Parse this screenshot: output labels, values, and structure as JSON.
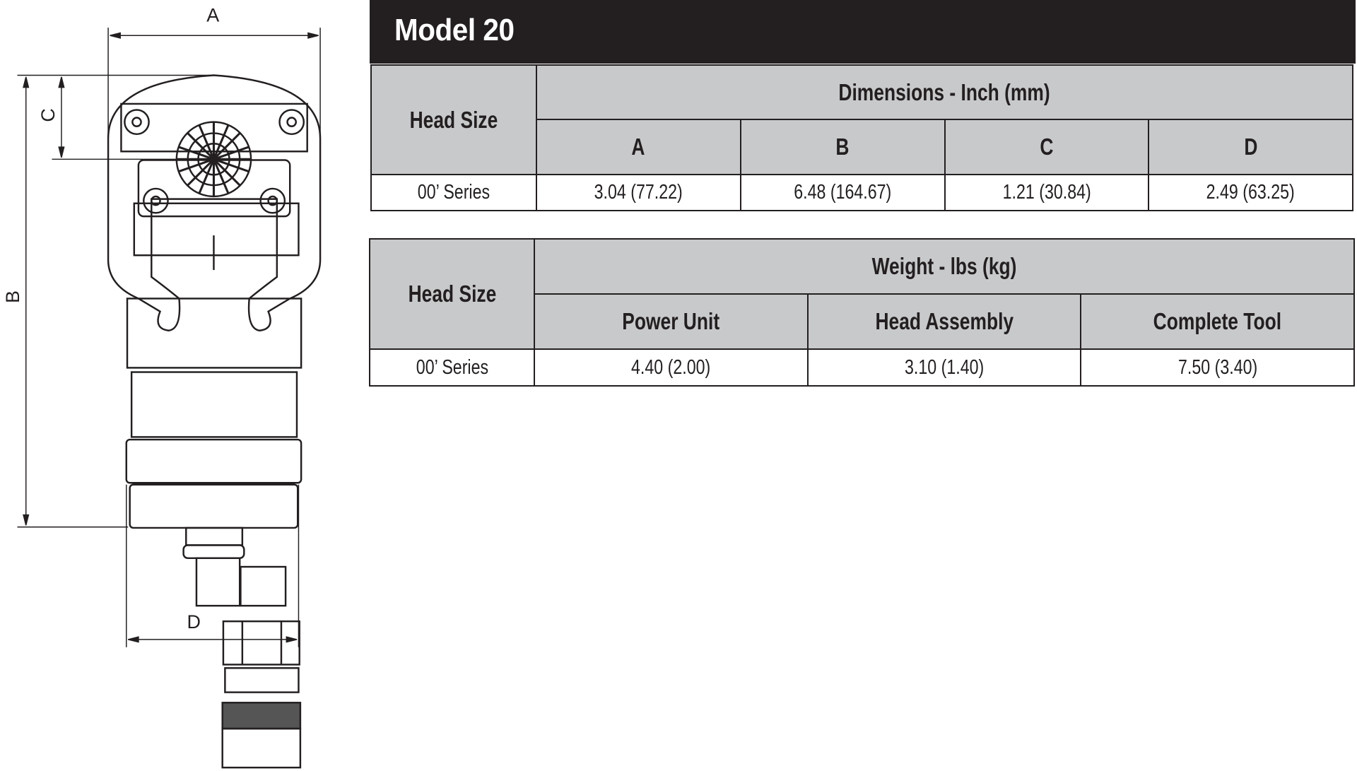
{
  "title": "Model 20",
  "drawing": {
    "labels": {
      "a": "A",
      "b": "B",
      "c": "C",
      "d": "D"
    }
  },
  "dimensions_table": {
    "head_size_label": "Head Size",
    "group_label": "Dimensions - Inch (mm)",
    "columns": [
      "A",
      "B",
      "C",
      "D"
    ],
    "rows": [
      {
        "head_size": "00’ Series",
        "values": [
          "3.04 (77.22)",
          "6.48 (164.67)",
          "1.21 (30.84)",
          "2.49 (63.25)"
        ]
      }
    ]
  },
  "weight_table": {
    "head_size_label": "Head Size",
    "group_label": "Weight - lbs (kg)",
    "columns": [
      "Power Unit",
      "Head Assembly",
      "Complete Tool"
    ],
    "rows": [
      {
        "head_size": "00’ Series",
        "values": [
          "4.40 (2.00)",
          "3.10 (1.40)",
          "7.50 (3.40)"
        ]
      }
    ]
  }
}
